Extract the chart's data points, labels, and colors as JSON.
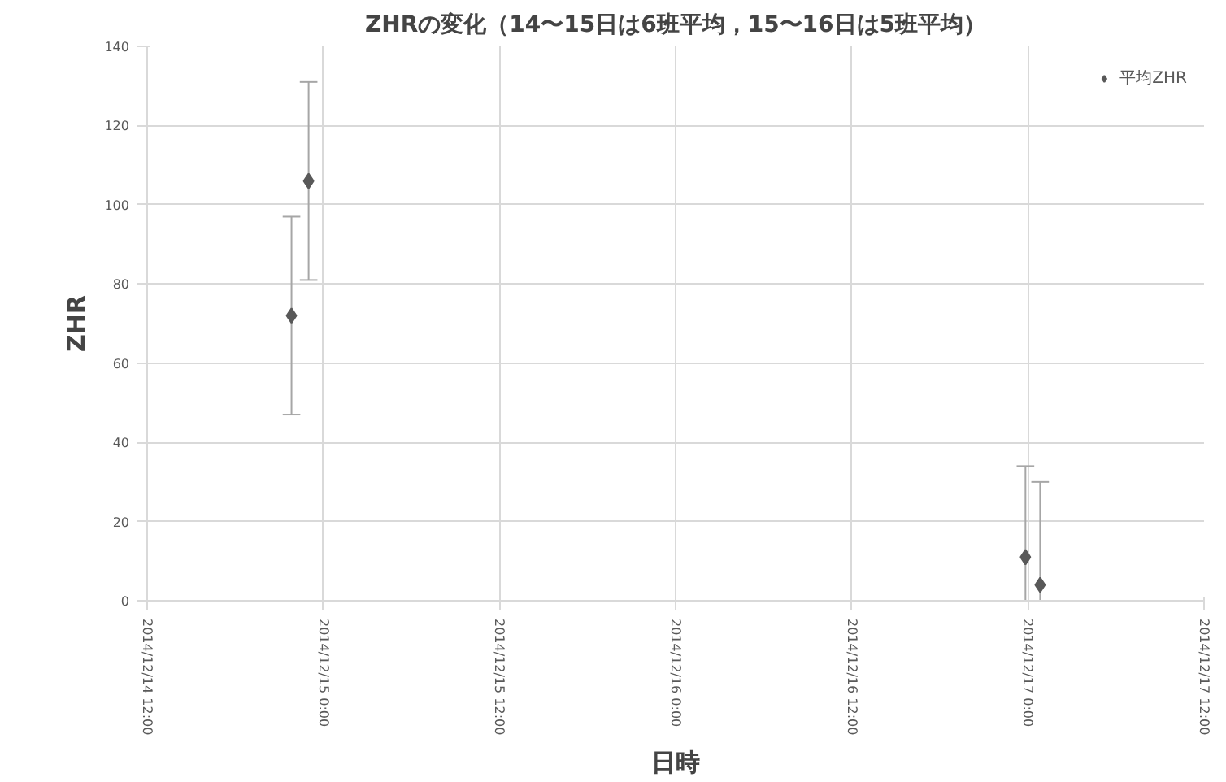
{
  "chart_data": {
    "type": "scatter",
    "title": "ZHRの変化（14〜15日は6班平均，15〜16日は5班平均）",
    "xlabel": "日時",
    "ylabel": "ZHR",
    "x": [
      "2014-12-14T21:50",
      "2014-12-14T23:00",
      "2014-12-16T23:50",
      "2014-12-17T00:50"
    ],
    "series": [
      {
        "name": "平均ZHR",
        "color": "#595959",
        "values": [
          72,
          106,
          11,
          4
        ],
        "errors": [
          25,
          25,
          [
            0,
            34
          ],
          [
            0,
            30
          ]
        ]
      }
    ],
    "xlim": [
      "2014-12-14T12:00",
      "2014-12-17T12:00"
    ],
    "xticks": [
      {
        "value": "2014-12-14T12:00",
        "label": "2014/12/14 12:00"
      },
      {
        "value": "2014-12-15T00:00",
        "label": "2014/12/15 0:00"
      },
      {
        "value": "2014-12-15T12:00",
        "label": "2014/12/15 12:00"
      },
      {
        "value": "2014-12-16T00:00",
        "label": "2014/12/16 0:00"
      },
      {
        "value": "2014-12-16T12:00",
        "label": "2014/12/16 12:00"
      },
      {
        "value": "2014-12-17T00:00",
        "label": "2014/12/17 0:00"
      },
      {
        "value": "2014-12-17T12:00",
        "label": "2014/12/17 12:00"
      }
    ],
    "ylim": [
      0,
      140
    ],
    "yticks": [
      0,
      20,
      40,
      60,
      80,
      100,
      120,
      140
    ],
    "grid": true,
    "legend": "top right",
    "marker": "diamond"
  }
}
